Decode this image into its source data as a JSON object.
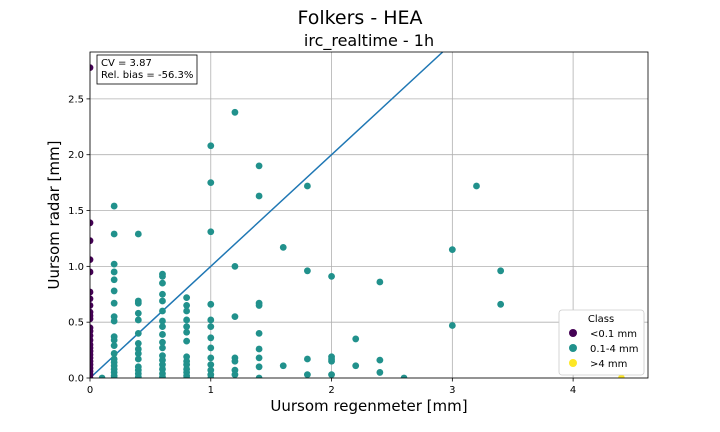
{
  "chart_data": {
    "type": "scatter",
    "suptitle": "Folkers - HEA",
    "title": "irc_realtime - 1h",
    "xlabel": "Uursom regenmeter [mm]",
    "ylabel": "Uursom radar [mm]",
    "xlim": [
      0,
      4.62
    ],
    "ylim": [
      0,
      2.92
    ],
    "xticks": [
      0,
      1,
      2,
      3,
      4
    ],
    "yticks": [
      0.0,
      0.5,
      1.0,
      1.5,
      2.0,
      2.5
    ],
    "xtick_labels": [
      "0",
      "1",
      "2",
      "3",
      "4"
    ],
    "ytick_labels": [
      "0.0",
      "0.5",
      "1.0",
      "1.5",
      "2.0",
      "2.5"
    ],
    "grid": true,
    "reference_line": {
      "x": [
        0,
        2.92
      ],
      "y": [
        0,
        2.92
      ],
      "color": "#1f77b4"
    },
    "annotation": {
      "line1": "CV = 3.87",
      "line2": "Rel. bias = -56.3%"
    },
    "legend": {
      "title": "Class",
      "placement": "lower-right"
    },
    "series": [
      {
        "name": "<0.1 mm",
        "color": "#440154",
        "points": [
          [
            0,
            2.78
          ],
          [
            0,
            1.39
          ],
          [
            0,
            1.23
          ],
          [
            0,
            1.06
          ],
          [
            0,
            0.95
          ],
          [
            0,
            0.77
          ],
          [
            0,
            0.71
          ],
          [
            0,
            0.65
          ],
          [
            0,
            0.59
          ],
          [
            0,
            0.56
          ],
          [
            0,
            0.53
          ],
          [
            0,
            0.45
          ],
          [
            0,
            0.42
          ],
          [
            0,
            0.38
          ],
          [
            0,
            0.34
          ],
          [
            0,
            0.3
          ],
          [
            0,
            0.27
          ],
          [
            0,
            0.24
          ],
          [
            0,
            0.21
          ],
          [
            0,
            0.18
          ],
          [
            0,
            0.15
          ],
          [
            0,
            0.12
          ],
          [
            0,
            0.09
          ],
          [
            0,
            0.06
          ],
          [
            0,
            0.03
          ],
          [
            0,
            0.0
          ]
        ]
      },
      {
        "name": "0.1-4 mm",
        "color": "#21918c",
        "points": [
          [
            0.1,
            0.0
          ],
          [
            0.2,
            1.54
          ],
          [
            0.2,
            1.29
          ],
          [
            0.2,
            1.02
          ],
          [
            0.2,
            0.95
          ],
          [
            0.2,
            0.88
          ],
          [
            0.2,
            0.78
          ],
          [
            0.2,
            0.67
          ],
          [
            0.2,
            0.55
          ],
          [
            0.2,
            0.51
          ],
          [
            0.2,
            0.37
          ],
          [
            0.2,
            0.34
          ],
          [
            0.2,
            0.29
          ],
          [
            0.2,
            0.22
          ],
          [
            0.2,
            0.17
          ],
          [
            0.2,
            0.14
          ],
          [
            0.2,
            0.11
          ],
          [
            0.2,
            0.08
          ],
          [
            0.2,
            0.05
          ],
          [
            0.2,
            0.02
          ],
          [
            0.2,
            0.0
          ],
          [
            0.4,
            1.29
          ],
          [
            0.4,
            0.69
          ],
          [
            0.4,
            0.67
          ],
          [
            0.4,
            0.58
          ],
          [
            0.4,
            0.52
          ],
          [
            0.4,
            0.4
          ],
          [
            0.4,
            0.31
          ],
          [
            0.4,
            0.26
          ],
          [
            0.4,
            0.22
          ],
          [
            0.4,
            0.17
          ],
          [
            0.4,
            0.1
          ],
          [
            0.4,
            0.07
          ],
          [
            0.4,
            0.04
          ],
          [
            0.4,
            0.01
          ],
          [
            0.6,
            0.93
          ],
          [
            0.6,
            0.91
          ],
          [
            0.6,
            0.85
          ],
          [
            0.6,
            0.75
          ],
          [
            0.6,
            0.69
          ],
          [
            0.6,
            0.6
          ],
          [
            0.6,
            0.51
          ],
          [
            0.6,
            0.46
          ],
          [
            0.6,
            0.39
          ],
          [
            0.6,
            0.32
          ],
          [
            0.6,
            0.27
          ],
          [
            0.6,
            0.2
          ],
          [
            0.6,
            0.16
          ],
          [
            0.6,
            0.12
          ],
          [
            0.6,
            0.08
          ],
          [
            0.6,
            0.04
          ],
          [
            0.6,
            0.01
          ],
          [
            0.8,
            0.72
          ],
          [
            0.8,
            0.65
          ],
          [
            0.8,
            0.6
          ],
          [
            0.8,
            0.52
          ],
          [
            0.8,
            0.46
          ],
          [
            0.8,
            0.41
          ],
          [
            0.8,
            0.33
          ],
          [
            0.8,
            0.19
          ],
          [
            0.8,
            0.15
          ],
          [
            0.8,
            0.12
          ],
          [
            0.8,
            0.08
          ],
          [
            0.8,
            0.05
          ],
          [
            0.8,
            0.02
          ],
          [
            0.8,
            0.0
          ],
          [
            1.0,
            2.08
          ],
          [
            1.0,
            1.75
          ],
          [
            1.0,
            1.31
          ],
          [
            1.0,
            0.66
          ],
          [
            1.0,
            0.52
          ],
          [
            1.0,
            0.46
          ],
          [
            1.0,
            0.36
          ],
          [
            1.0,
            0.27
          ],
          [
            1.0,
            0.18
          ],
          [
            1.0,
            0.12
          ],
          [
            1.0,
            0.07
          ],
          [
            1.0,
            0.03
          ],
          [
            1.0,
            0.0
          ],
          [
            1.2,
            2.38
          ],
          [
            1.2,
            1.0
          ],
          [
            1.2,
            0.55
          ],
          [
            1.2,
            0.18
          ],
          [
            1.2,
            0.15
          ],
          [
            1.2,
            0.07
          ],
          [
            1.2,
            0.03
          ],
          [
            1.4,
            1.9
          ],
          [
            1.4,
            1.63
          ],
          [
            1.4,
            0.67
          ],
          [
            1.4,
            0.65
          ],
          [
            1.4,
            0.4
          ],
          [
            1.4,
            0.26
          ],
          [
            1.4,
            0.18
          ],
          [
            1.4,
            0.1
          ],
          [
            1.4,
            0.0
          ],
          [
            1.6,
            1.17
          ],
          [
            1.6,
            0.11
          ],
          [
            1.8,
            1.72
          ],
          [
            1.8,
            0.96
          ],
          [
            1.8,
            0.17
          ],
          [
            1.8,
            0.03
          ],
          [
            2.0,
            0.91
          ],
          [
            2.0,
            0.19
          ],
          [
            2.0,
            0.17
          ],
          [
            2.0,
            0.15
          ],
          [
            2.0,
            0.03
          ],
          [
            2.2,
            0.35
          ],
          [
            2.2,
            0.11
          ],
          [
            2.4,
            0.86
          ],
          [
            2.4,
            0.16
          ],
          [
            2.4,
            0.05
          ],
          [
            2.6,
            0.0
          ],
          [
            3.0,
            1.15
          ],
          [
            3.0,
            0.47
          ],
          [
            3.2,
            1.72
          ],
          [
            3.4,
            0.96
          ],
          [
            3.4,
            0.66
          ]
        ]
      },
      {
        "name": ">4 mm",
        "color": "#fde725",
        "points": [
          [
            4.4,
            0.0
          ]
        ]
      }
    ]
  }
}
